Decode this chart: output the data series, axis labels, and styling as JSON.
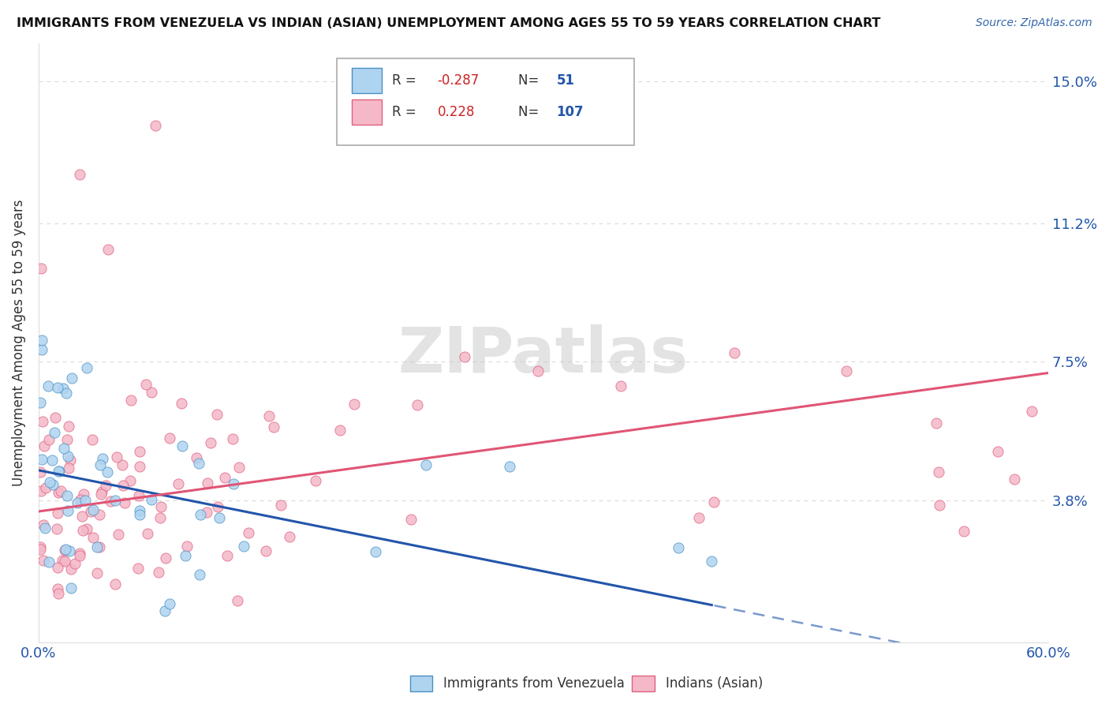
{
  "title": "IMMIGRANTS FROM VENEZUELA VS INDIAN (ASIAN) UNEMPLOYMENT AMONG AGES 55 TO 59 YEARS CORRELATION CHART",
  "source": "Source: ZipAtlas.com",
  "ylabel": "Unemployment Among Ages 55 to 59 years",
  "xlim": [
    0.0,
    0.6
  ],
  "ylim": [
    0.0,
    0.16
  ],
  "ytick_positions": [
    0.0,
    0.038,
    0.075,
    0.112,
    0.15
  ],
  "ytick_labels": [
    "",
    "3.8%",
    "7.5%",
    "11.2%",
    "15.0%"
  ],
  "xtick_positions": [
    0.0,
    0.6
  ],
  "xtick_labels": [
    "0.0%",
    "60.0%"
  ],
  "watermark": "ZIPatlas",
  "venezuela_R": -0.287,
  "venezuela_N": 51,
  "indian_R": 0.228,
  "indian_N": 107,
  "venezuela_fill_color": "#afd4f0",
  "venezuela_edge_color": "#4a90c4",
  "indian_fill_color": "#f4b8c8",
  "indian_edge_color": "#e06080",
  "venezuela_line_color": "#2255aa",
  "indian_line_color": "#e05575",
  "background_color": "#ffffff",
  "grid_color": "#dddddd",
  "title_color": "#111111",
  "source_color": "#3366aa",
  "axis_label_color": "#333333",
  "tick_color": "#2255aa",
  "watermark_color": "#cccccc",
  "legend_border_color": "#aaaaaa",
  "legend_bg": "#ffffff",
  "bottom_legend_label1": "Immigrants from Venezuela",
  "bottom_legend_label2": "Indians (Asian)"
}
